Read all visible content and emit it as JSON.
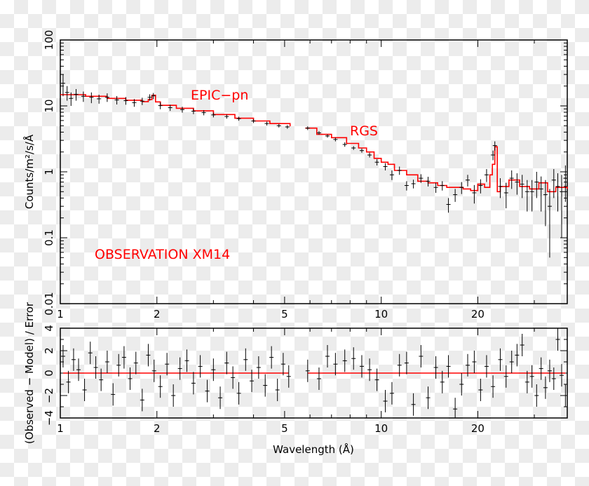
{
  "chart_data": [
    {
      "type": "line",
      "panel": "spectrum",
      "xlabel": "",
      "ylabel": "Counts/m²/s/Å",
      "xscale": "log",
      "yscale": "log",
      "xlim": [
        1,
        38
      ],
      "ylim": [
        0.01,
        100
      ],
      "xticks": [
        "1",
        "2",
        "5",
        "10",
        "20"
      ],
      "yticks": [
        "0.01",
        "0.1",
        "1",
        "10",
        "100"
      ],
      "annotations": [
        "EPIC−pn",
        "RGS",
        "OBSERVATION XM14"
      ],
      "colors": {
        "model": "#ff0000",
        "data": "#000000",
        "annotation": "#ff0000"
      },
      "series": [
        {
          "name": "EPIC−pn",
          "role": "model",
          "x": [
            1.0,
            1.2,
            1.4,
            1.6,
            1.8,
            1.88,
            1.93,
            1.98,
            2.05,
            2.3,
            2.6,
            3.0,
            3.5,
            4.0,
            4.5,
            5.2
          ],
          "y": [
            14.8,
            14.0,
            13.0,
            12.2,
            11.6,
            12.5,
            14.5,
            11.5,
            10.2,
            9.2,
            8.4,
            7.4,
            6.5,
            5.9,
            5.4,
            4.9
          ]
        },
        {
          "name": "EPIC−pn",
          "role": "data",
          "x": [
            1.02,
            1.05,
            1.08,
            1.12,
            1.18,
            1.25,
            1.32,
            1.4,
            1.5,
            1.6,
            1.7,
            1.8,
            1.9,
            1.95,
            2.05,
            2.2,
            2.4,
            2.6,
            2.8,
            3.0,
            3.3,
            3.6,
            4.0,
            4.4,
            4.8,
            5.1
          ],
          "y": [
            22,
            16,
            13,
            15,
            14,
            13.5,
            12.8,
            13.5,
            12.3,
            12,
            11.2,
            11.8,
            13.5,
            14.2,
            10.1,
            9.4,
            8.8,
            8.3,
            7.9,
            7.3,
            6.9,
            6.4,
            5.9,
            5.4,
            5.0,
            4.8
          ],
          "err": [
            8,
            4,
            3,
            3,
            2.5,
            2.5,
            2,
            2,
            1.8,
            1.6,
            1.5,
            1.5,
            1.5,
            1.5,
            1.2,
            1.0,
            0.9,
            0.8,
            0.7,
            0.6,
            0.5,
            0.45,
            0.4,
            0.35,
            0.3,
            0.3
          ]
        },
        {
          "name": "RGS",
          "role": "model",
          "x": [
            5.8,
            6.3,
            7.0,
            7.8,
            8.5,
            9.0,
            9.5,
            10.0,
            10.5,
            11.0,
            12.0,
            13.0,
            14.0,
            15.0,
            16.0,
            17.0,
            18.0,
            19.0,
            20.0,
            21.0,
            21.8,
            22.2,
            22.6,
            23.0,
            23.5,
            25.0,
            27.0,
            29.0,
            31.0,
            33.0,
            35.0,
            38.0
          ],
          "y": [
            4.6,
            3.7,
            3.3,
            2.7,
            2.3,
            2.0,
            1.6,
            1.4,
            1.3,
            1.05,
            0.9,
            0.72,
            0.68,
            0.62,
            0.58,
            0.58,
            0.55,
            0.52,
            0.65,
            0.58,
            0.9,
            1.3,
            2.4,
            0.5,
            0.6,
            0.75,
            0.6,
            0.55,
            0.68,
            0.5,
            0.58,
            0.55
          ]
        },
        {
          "name": "RGS",
          "role": "data",
          "x": [
            5.9,
            6.4,
            6.8,
            7.2,
            7.7,
            8.2,
            8.7,
            9.2,
            9.7,
            10.3,
            10.8,
            11.4,
            12.0,
            12.6,
            13.3,
            14.0,
            14.8,
            15.5,
            16.2,
            17.0,
            17.8,
            18.6,
            19.5,
            20.4,
            21.3,
            22.3,
            22.6,
            23.5,
            24.5,
            25.5,
            26.5,
            27.5,
            28.5,
            29.5,
            30.5,
            31.5,
            32.5,
            33.5,
            34.5,
            35.5,
            36.5,
            37.5
          ],
          "y": [
            4.6,
            3.9,
            3.5,
            3.1,
            2.6,
            2.3,
            2.1,
            1.8,
            1.4,
            1.2,
            0.9,
            1.05,
            0.62,
            0.66,
            0.8,
            0.72,
            0.58,
            0.62,
            0.32,
            0.45,
            0.58,
            0.75,
            0.48,
            0.62,
            0.9,
            1.8,
            2.5,
            0.6,
            0.48,
            0.8,
            0.7,
            0.65,
            0.5,
            0.5,
            0.7,
            0.55,
            0.45,
            0.3,
            0.75,
            0.6,
            0.5,
            0.8
          ],
          "err": [
            0.3,
            0.25,
            0.2,
            0.2,
            0.2,
            0.15,
            0.15,
            0.15,
            0.15,
            0.15,
            0.15,
            0.15,
            0.1,
            0.1,
            0.12,
            0.12,
            0.1,
            0.1,
            0.08,
            0.1,
            0.12,
            0.15,
            0.15,
            0.15,
            0.2,
            0.3,
            0.4,
            0.2,
            0.2,
            0.25,
            0.25,
            0.25,
            0.25,
            0.25,
            0.3,
            0.3,
            0.3,
            0.25,
            0.35,
            0.35,
            0.4,
            0.45
          ]
        }
      ]
    },
    {
      "type": "scatter",
      "panel": "residuals",
      "xlabel": "Wavelength (Å)",
      "ylabel": "(Observed − Model) / Error",
      "xscale": "log",
      "xlim": [
        1,
        38
      ],
      "ylim": [
        -4,
        4
      ],
      "xticks": [
        "1",
        "2",
        "5",
        "10",
        "20"
      ],
      "yticks": [
        "−4",
        "−2",
        "0",
        "2",
        "4"
      ],
      "colors": {
        "zero_line": "#ff0000",
        "data": "#000000"
      },
      "series": [
        {
          "name": "EPIC−pn",
          "x": [
            1.02,
            1.06,
            1.1,
            1.14,
            1.19,
            1.24,
            1.29,
            1.34,
            1.4,
            1.46,
            1.52,
            1.58,
            1.65,
            1.72,
            1.8,
            1.88,
            1.96,
            2.05,
            2.15,
            2.25,
            2.36,
            2.48,
            2.6,
            2.73,
            2.87,
            3.0,
            3.15,
            3.3,
            3.45,
            3.6,
            3.78,
            3.95,
            4.15,
            4.35,
            4.55,
            4.75,
            4.95,
            5.15
          ],
          "y": [
            1.5,
            -0.8,
            1.2,
            0.3,
            -1.5,
            1.8,
            0.5,
            -0.6,
            1.0,
            -1.9,
            0.7,
            1.4,
            -0.5,
            0.9,
            -2.4,
            1.6,
            0.2,
            -1.2,
            0.8,
            -2.0,
            0.4,
            1.1,
            -0.9,
            0.6,
            -1.6,
            0.3,
            -2.2,
            0.9,
            -0.4,
            -1.8,
            1.2,
            -0.7,
            0.5,
            -1.1,
            1.4,
            -1.5,
            0.8,
            -0.3
          ],
          "err": [
            1,
            1,
            1,
            1,
            1,
            1,
            1,
            1,
            1,
            1,
            1,
            1,
            1,
            1,
            1,
            1,
            1,
            1,
            1,
            1,
            1,
            1,
            1,
            1,
            1,
            1,
            1,
            1,
            1,
            1,
            1,
            1,
            1,
            1,
            1,
            1,
            1,
            1
          ]
        },
        {
          "name": "RGS",
          "x": [
            5.9,
            6.4,
            6.8,
            7.2,
            7.7,
            8.2,
            8.7,
            9.2,
            9.7,
            10.3,
            10.8,
            11.4,
            12.0,
            12.6,
            13.3,
            14.0,
            14.8,
            15.5,
            16.2,
            17.0,
            17.8,
            18.6,
            19.5,
            20.4,
            21.3,
            22.3,
            23.5,
            24.5,
            25.5,
            26.5,
            27.5,
            28.5,
            29.5,
            30.5,
            31.5,
            32.5,
            33.5,
            34.5,
            35.5,
            36.5,
            37.5
          ],
          "y": [
            0.2,
            -0.5,
            1.5,
            0.8,
            1.1,
            1.3,
            0.6,
            0.3,
            -0.6,
            -2.5,
            -1.8,
            0.7,
            0.9,
            -2.8,
            1.5,
            -2.2,
            0.5,
            -0.8,
            0.6,
            -3.2,
            -1.0,
            0.7,
            1.0,
            -1.5,
            0.6,
            -1.2,
            1.2,
            -0.3,
            1.0,
            1.6,
            2.5,
            -0.8,
            -0.3,
            -2.0,
            0.4,
            -1.3,
            0.2,
            -0.5,
            3.0,
            -0.2,
            -2.0
          ],
          "err": [
            1,
            1,
            1,
            1,
            1,
            1,
            1,
            1,
            1,
            1,
            1,
            1,
            1,
            1,
            1,
            1,
            1,
            1,
            1,
            1,
            1,
            1,
            1,
            1,
            1,
            1,
            1,
            1,
            1,
            1,
            1,
            1,
            1,
            1,
            1,
            1,
            1,
            1,
            1,
            1,
            1
          ]
        }
      ]
    }
  ]
}
